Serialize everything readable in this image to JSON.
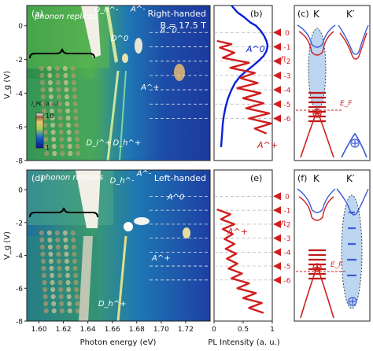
{
  "chart_data": [
    {
      "type": "heatmap",
      "panel_label": "(a)",
      "title": "Right-handed",
      "subtitle": "B = 17.5 T",
      "xlabel": "",
      "ylabel": "V_g (V)",
      "xlim": [
        1.59,
        1.74
      ],
      "ylim": [
        -8,
        1.2
      ],
      "yticks": [
        -8,
        -6,
        -4,
        -2,
        0
      ],
      "colorbar": {
        "label": "I_PL (a.u.)",
        "ticks": [
          "10",
          "1"
        ],
        "tick_values": [
          10,
          1
        ],
        "scale": "log"
      },
      "annotations": [
        {
          "text": "phonon replicas",
          "x": 1.622,
          "y": 0.4
        },
        {
          "text": "D_h^-",
          "x": 1.655,
          "y": 0.8
        },
        {
          "text": "A^-",
          "x": 1.681,
          "y": 0.85
        },
        {
          "text": "D^0",
          "x": 1.666,
          "y": -0.9
        },
        {
          "text": "A^0",
          "x": 1.706,
          "y": -0.4
        },
        {
          "text": "A^+",
          "x": 1.691,
          "y": -3.8
        },
        {
          "text": "D_i^+",
          "x": 1.649,
          "y": -7.1
        },
        {
          "text": "D_h^+",
          "x": 1.672,
          "y": -7.1
        }
      ]
    },
    {
      "type": "line",
      "panel_label": "(b)",
      "xlim": [
        0,
        1
      ],
      "ylim": [
        -8,
        1.2
      ],
      "series": [
        {
          "name": "A^0",
          "color": "#0a1fd6",
          "y": [
            1.2,
            0.8,
            0.5,
            0.2,
            0.0,
            -0.3,
            -0.6,
            -0.9,
            -1.2,
            -1.5,
            -1.8,
            -2.1,
            -2.4,
            -2.7,
            -3.0,
            -3.4,
            -3.8,
            -4.3,
            -4.8,
            -5.3,
            -5.8,
            -6.3,
            -6.8,
            -7.2
          ],
          "x": [
            0.3,
            0.4,
            0.52,
            0.62,
            0.72,
            0.8,
            0.86,
            0.9,
            0.92,
            0.9,
            0.85,
            0.76,
            0.66,
            0.55,
            0.45,
            0.36,
            0.3,
            0.24,
            0.2,
            0.17,
            0.15,
            0.14,
            0.13,
            0.12
          ]
        },
        {
          "name": "A^+",
          "color": "#d01e1e",
          "y": [
            -0.9,
            -1.1,
            -1.3,
            -1.6,
            -1.9,
            -2.2,
            -2.5,
            -2.8,
            -3.1,
            -3.4,
            -3.7,
            -4.0,
            -4.3,
            -4.6,
            -4.9,
            -5.2,
            -5.5,
            -5.8,
            -6.1,
            -6.4
          ],
          "x": [
            0.05,
            0.3,
            0.1,
            0.35,
            0.15,
            0.6,
            0.28,
            0.7,
            0.45,
            0.75,
            0.4,
            0.8,
            0.5,
            0.85,
            0.55,
            0.95,
            0.6,
            0.98,
            0.7,
            0.9
          ]
        }
      ]
    },
    {
      "type": "heatmap",
      "panel_label": "(d)",
      "title": "Left-handed",
      "xlabel": "Photon energy (eV)",
      "ylabel": "V_g (V)",
      "xlim": [
        1.59,
        1.74
      ],
      "ylim": [
        -8,
        1.2
      ],
      "xticks": [
        1.6,
        1.62,
        1.64,
        1.66,
        1.68,
        1.7,
        1.72
      ],
      "xtick_labels": [
        "1.60",
        "1.62",
        "1.64",
        "1.66",
        "1.68",
        "1.70",
        "1.72"
      ],
      "yticks": [
        -8,
        -6,
        -4,
        -2,
        0
      ],
      "annotations": [
        {
          "text": "phonon replicas",
          "x": 1.627,
          "y": 0.6
        },
        {
          "text": "D_h^-",
          "x": 1.668,
          "y": 0.4
        },
        {
          "text": "A^-",
          "x": 1.686,
          "y": 0.85
        },
        {
          "text": "A^0",
          "x": 1.712,
          "y": -0.6
        },
        {
          "text": "A^+",
          "x": 1.7,
          "y": -4.3
        },
        {
          "text": "D_h^+",
          "x": 1.66,
          "y": -7.1
        }
      ]
    },
    {
      "type": "line",
      "panel_label": "(e)",
      "xlabel": "PL Intensity (a. u.)",
      "xlim": [
        0,
        1
      ],
      "xticks": [
        0,
        0.5,
        1
      ],
      "xtick_labels": [
        "0",
        "0.5",
        "1"
      ],
      "ylim": [
        -8,
        1.2
      ],
      "series": [
        {
          "name": "A^+",
          "color": "#d01e1e",
          "y": [
            -1.2,
            -1.5,
            -1.8,
            -2.1,
            -2.4,
            -2.7,
            -3.0,
            -3.3,
            -3.6,
            -3.9,
            -4.2,
            -4.5,
            -4.8,
            -5.1,
            -5.4,
            -5.7,
            -6.0,
            -6.3,
            -6.6,
            -6.9,
            -7.2,
            -7.5
          ],
          "x": [
            0.05,
            0.28,
            0.12,
            0.35,
            0.15,
            0.32,
            0.18,
            0.35,
            0.2,
            0.38,
            0.22,
            0.4,
            0.25,
            0.48,
            0.3,
            0.6,
            0.4,
            0.72,
            0.5,
            0.82,
            0.6,
            0.85
          ]
        }
      ]
    }
  ],
  "ladder": {
    "title": "n",
    "labels": [
      "0",
      "-1",
      "-2",
      "-3",
      "-4",
      "-5",
      "-6"
    ],
    "fermi_label": "E_F"
  },
  "band_panels": [
    {
      "label": "(c)",
      "valley_left": "K",
      "valley_right": "K′"
    },
    {
      "label": "(f)",
      "valley_left": "K",
      "valley_right": "K′"
    }
  ]
}
